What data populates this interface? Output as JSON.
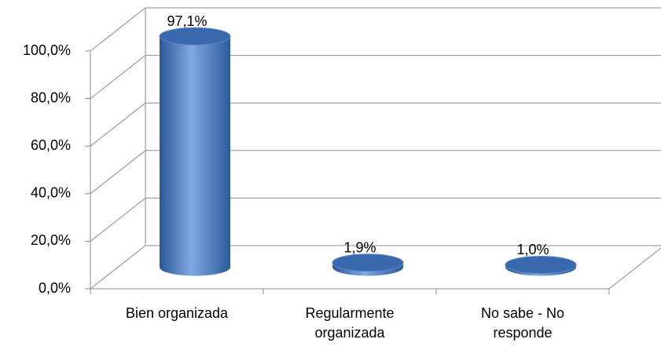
{
  "chart_data": {
    "type": "bar3d",
    "categories": [
      "Bien organizada",
      "Regularmente organizada",
      "No sabe - No responde"
    ],
    "values": [
      97.1,
      1.9,
      1.0
    ],
    "value_labels": [
      "97,1%",
      "1,9%",
      "1,0%"
    ],
    "color": "#4a7ec8",
    "ylim": [
      0,
      100
    ],
    "yticks": [
      {
        "value": 0,
        "label": "0,0%"
      },
      {
        "value": 20,
        "label": "20,0%"
      },
      {
        "value": 40,
        "label": "40,0%"
      },
      {
        "value": 60,
        "label": "60,0%"
      },
      {
        "value": 80,
        "label": "80,0%"
      },
      {
        "value": 100,
        "label": "100,0%"
      }
    ],
    "grid": true
  }
}
